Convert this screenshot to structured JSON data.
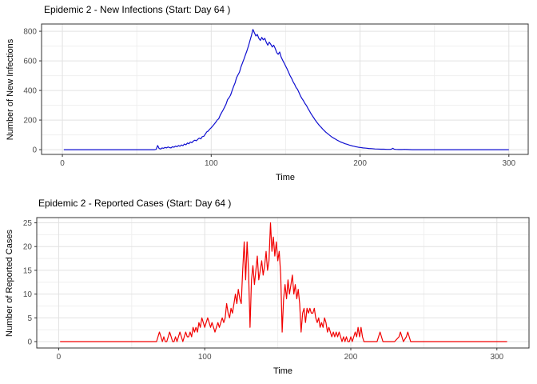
{
  "chart_data": [
    {
      "type": "line",
      "title": "Epidemic 2 - New Infections (Start: Day 64 )",
      "xlabel": "Time",
      "ylabel": "Number of New Infections",
      "line_color": "#0F0FD0",
      "start_day_shown_in_title": 64,
      "x_ticks": [
        0,
        100,
        200,
        300
      ],
      "x_minor_ticks": [
        50,
        150,
        250
      ],
      "y_ticks": [
        0,
        200,
        400,
        600,
        800
      ],
      "y_minor_ticks": [
        100,
        300,
        500,
        700
      ],
      "xlim": [
        -14,
        313
      ],
      "ylim": [
        -32,
        849
      ],
      "grid": true,
      "legend": "none",
      "points": [
        [
          1,
          0
        ],
        [
          10,
          0
        ],
        [
          20,
          0
        ],
        [
          30,
          0
        ],
        [
          40,
          0
        ],
        [
          50,
          0
        ],
        [
          58,
          0
        ],
        [
          62,
          0
        ],
        [
          63,
          2
        ],
        [
          64,
          28
        ],
        [
          65,
          8
        ],
        [
          66,
          4
        ],
        [
          67,
          12
        ],
        [
          68,
          9
        ],
        [
          69,
          15
        ],
        [
          70,
          12
        ],
        [
          71,
          18
        ],
        [
          72,
          14
        ],
        [
          73,
          12
        ],
        [
          74,
          20
        ],
        [
          75,
          16
        ],
        [
          76,
          24
        ],
        [
          77,
          20
        ],
        [
          78,
          28
        ],
        [
          79,
          23
        ],
        [
          80,
          32
        ],
        [
          81,
          27
        ],
        [
          82,
          38
        ],
        [
          83,
          33
        ],
        [
          84,
          45
        ],
        [
          85,
          40
        ],
        [
          86,
          52
        ],
        [
          87,
          47
        ],
        [
          88,
          58
        ],
        [
          89,
          64
        ],
        [
          90,
          60
        ],
        [
          91,
          70
        ],
        [
          92,
          78
        ],
        [
          93,
          73
        ],
        [
          94,
          88
        ],
        [
          95,
          90
        ],
        [
          96,
          105
        ],
        [
          97,
          120
        ],
        [
          98,
          126
        ],
        [
          99,
          138
        ],
        [
          100,
          148
        ],
        [
          101,
          160
        ],
        [
          102,
          172
        ],
        [
          103,
          185
        ],
        [
          104,
          200
        ],
        [
          105,
          208
        ],
        [
          106,
          232
        ],
        [
          107,
          250
        ],
        [
          108,
          268
        ],
        [
          109,
          288
        ],
        [
          110,
          308
        ],
        [
          111,
          338
        ],
        [
          112,
          352
        ],
        [
          113,
          368
        ],
        [
          114,
          398
        ],
        [
          115,
          425
        ],
        [
          116,
          450
        ],
        [
          117,
          486
        ],
        [
          118,
          505
        ],
        [
          119,
          524
        ],
        [
          120,
          560
        ],
        [
          121,
          585
        ],
        [
          122,
          612
        ],
        [
          123,
          640
        ],
        [
          124,
          668
        ],
        [
          125,
          700
        ],
        [
          126,
          735
        ],
        [
          127,
          770
        ],
        [
          128,
          812
        ],
        [
          129,
          790
        ],
        [
          130,
          768
        ],
        [
          131,
          778
        ],
        [
          132,
          752
        ],
        [
          133,
          738
        ],
        [
          134,
          758
        ],
        [
          135,
          742
        ],
        [
          136,
          752
        ],
        [
          137,
          726
        ],
        [
          138,
          706
        ],
        [
          139,
          726
        ],
        [
          140,
          712
        ],
        [
          141,
          694
        ],
        [
          142,
          706
        ],
        [
          143,
          684
        ],
        [
          144,
          656
        ],
        [
          145,
          644
        ],
        [
          146,
          660
        ],
        [
          147,
          626
        ],
        [
          148,
          604
        ],
        [
          149,
          585
        ],
        [
          150,
          565
        ],
        [
          151,
          545
        ],
        [
          152,
          522
        ],
        [
          153,
          500
        ],
        [
          154,
          482
        ],
        [
          155,
          460
        ],
        [
          156,
          442
        ],
        [
          157,
          420
        ],
        [
          158,
          408
        ],
        [
          159,
          385
        ],
        [
          160,
          362
        ],
        [
          161,
          345
        ],
        [
          162,
          330
        ],
        [
          163,
          312
        ],
        [
          164,
          298
        ],
        [
          165,
          278
        ],
        [
          166,
          262
        ],
        [
          167,
          244
        ],
        [
          168,
          228
        ],
        [
          169,
          214
        ],
        [
          170,
          198
        ],
        [
          171,
          185
        ],
        [
          172,
          172
        ],
        [
          173,
          160
        ],
        [
          174,
          150
        ],
        [
          175,
          138
        ],
        [
          176,
          128
        ],
        [
          177,
          118
        ],
        [
          178,
          110
        ],
        [
          179,
          102
        ],
        [
          180,
          94
        ],
        [
          181,
          86
        ],
        [
          182,
          80
        ],
        [
          183,
          74
        ],
        [
          184,
          68
        ],
        [
          185,
          62
        ],
        [
          186,
          57
        ],
        [
          187,
          52
        ],
        [
          188,
          48
        ],
        [
          189,
          44
        ],
        [
          190,
          40
        ],
        [
          191,
          37
        ],
        [
          192,
          34
        ],
        [
          193,
          30
        ],
        [
          194,
          28
        ],
        [
          195,
          25
        ],
        [
          196,
          23
        ],
        [
          197,
          20
        ],
        [
          198,
          18
        ],
        [
          199,
          16
        ],
        [
          200,
          15
        ],
        [
          202,
          12
        ],
        [
          204,
          10
        ],
        [
          206,
          8
        ],
        [
          208,
          7
        ],
        [
          210,
          5
        ],
        [
          212,
          4
        ],
        [
          214,
          3
        ],
        [
          216,
          3
        ],
        [
          218,
          2
        ],
        [
          220,
          2
        ],
        [
          221,
          3
        ],
        [
          222,
          9
        ],
        [
          223,
          3
        ],
        [
          224,
          2
        ],
        [
          226,
          1
        ],
        [
          228,
          1
        ],
        [
          230,
          2
        ],
        [
          232,
          1
        ],
        [
          235,
          0
        ],
        [
          240,
          0
        ],
        [
          250,
          0
        ],
        [
          260,
          0
        ],
        [
          270,
          0
        ],
        [
          280,
          0
        ],
        [
          290,
          0
        ],
        [
          300,
          0
        ]
      ]
    },
    {
      "type": "line",
      "title": "Epidemic 2 - Reported Cases (Start: Day 64 )",
      "xlabel": "Time",
      "ylabel": "Number of Reported Cases",
      "line_color": "#F20000",
      "start_day_shown_in_title": 64,
      "x_ticks": [
        0,
        100,
        200,
        300
      ],
      "x_minor_ticks": [
        50,
        150,
        250
      ],
      "y_ticks": [
        0,
        5,
        10,
        15,
        20,
        25
      ],
      "y_minor_ticks": [
        2.5,
        7.5,
        12.5,
        17.5,
        22.5
      ],
      "xlim": [
        -15,
        322
      ],
      "ylim": [
        -1.35,
        26.1
      ],
      "grid": true,
      "legend": "none",
      "points": [
        [
          1,
          0
        ],
        [
          10,
          0
        ],
        [
          20,
          0
        ],
        [
          30,
          0
        ],
        [
          40,
          0
        ],
        [
          50,
          0
        ],
        [
          60,
          0
        ],
        [
          65,
          0
        ],
        [
          67,
          0
        ],
        [
          68,
          1
        ],
        [
          69,
          2
        ],
        [
          70,
          1
        ],
        [
          71,
          0
        ],
        [
          72,
          1
        ],
        [
          73,
          0
        ],
        [
          74,
          0
        ],
        [
          75,
          1
        ],
        [
          76,
          2
        ],
        [
          77,
          1
        ],
        [
          78,
          0
        ],
        [
          79,
          0
        ],
        [
          80,
          1
        ],
        [
          81,
          0
        ],
        [
          82,
          1
        ],
        [
          83,
          2
        ],
        [
          84,
          1
        ],
        [
          85,
          0
        ],
        [
          86,
          1
        ],
        [
          87,
          2
        ],
        [
          88,
          1
        ],
        [
          89,
          1
        ],
        [
          90,
          2
        ],
        [
          91,
          1
        ],
        [
          92,
          3
        ],
        [
          93,
          2
        ],
        [
          94,
          3
        ],
        [
          95,
          2
        ],
        [
          96,
          4
        ],
        [
          97,
          3
        ],
        [
          98,
          5
        ],
        [
          99,
          4
        ],
        [
          100,
          3
        ],
        [
          101,
          4
        ],
        [
          102,
          5
        ],
        [
          103,
          4
        ],
        [
          104,
          3
        ],
        [
          105,
          4
        ],
        [
          106,
          3
        ],
        [
          107,
          2
        ],
        [
          108,
          3
        ],
        [
          109,
          4
        ],
        [
          110,
          3
        ],
        [
          111,
          4
        ],
        [
          112,
          5
        ],
        [
          113,
          4
        ],
        [
          114,
          5
        ],
        [
          115,
          8
        ],
        [
          116,
          6
        ],
        [
          117,
          5
        ],
        [
          118,
          7
        ],
        [
          119,
          6
        ],
        [
          120,
          8
        ],
        [
          121,
          10
        ],
        [
          122,
          8
        ],
        [
          123,
          11
        ],
        [
          124,
          9
        ],
        [
          125,
          8
        ],
        [
          126,
          15
        ],
        [
          127,
          21
        ],
        [
          128,
          13
        ],
        [
          129,
          21
        ],
        [
          130,
          15
        ],
        [
          131,
          3
        ],
        [
          132,
          13
        ],
        [
          133,
          16
        ],
        [
          134,
          12
        ],
        [
          135,
          15
        ],
        [
          136,
          18
        ],
        [
          137,
          13
        ],
        [
          138,
          15
        ],
        [
          139,
          17
        ],
        [
          140,
          14
        ],
        [
          141,
          16
        ],
        [
          142,
          19
        ],
        [
          143,
          15
        ],
        [
          144,
          17
        ],
        [
          145,
          25
        ],
        [
          146,
          19
        ],
        [
          147,
          22
        ],
        [
          148,
          18
        ],
        [
          149,
          21
        ],
        [
          150,
          17
        ],
        [
          151,
          19
        ],
        [
          152,
          14
        ],
        [
          153,
          2
        ],
        [
          154,
          9
        ],
        [
          155,
          12
        ],
        [
          156,
          9
        ],
        [
          157,
          13
        ],
        [
          158,
          10
        ],
        [
          159,
          12
        ],
        [
          160,
          14
        ],
        [
          161,
          10
        ],
        [
          162,
          12
        ],
        [
          163,
          9
        ],
        [
          164,
          11
        ],
        [
          165,
          8
        ],
        [
          166,
          2
        ],
        [
          167,
          6
        ],
        [
          168,
          7
        ],
        [
          169,
          4
        ],
        [
          170,
          7
        ],
        [
          171,
          6
        ],
        [
          172,
          7
        ],
        [
          173,
          6
        ],
        [
          174,
          6
        ],
        [
          175,
          7
        ],
        [
          176,
          5
        ],
        [
          177,
          4
        ],
        [
          178,
          5
        ],
        [
          179,
          3
        ],
        [
          180,
          4
        ],
        [
          181,
          3
        ],
        [
          182,
          5
        ],
        [
          183,
          4
        ],
        [
          184,
          2
        ],
        [
          185,
          3
        ],
        [
          186,
          2
        ],
        [
          187,
          1
        ],
        [
          188,
          2
        ],
        [
          189,
          1
        ],
        [
          190,
          2
        ],
        [
          191,
          1
        ],
        [
          192,
          2
        ],
        [
          193,
          1
        ],
        [
          194,
          0
        ],
        [
          195,
          1
        ],
        [
          196,
          0
        ],
        [
          197,
          1
        ],
        [
          198,
          0
        ],
        [
          199,
          0
        ],
        [
          200,
          1
        ],
        [
          201,
          0
        ],
        [
          202,
          1
        ],
        [
          203,
          2
        ],
        [
          204,
          1
        ],
        [
          205,
          3
        ],
        [
          206,
          1
        ],
        [
          207,
          3
        ],
        [
          208,
          1
        ],
        [
          209,
          0
        ],
        [
          210,
          0
        ],
        [
          212,
          0
        ],
        [
          215,
          0
        ],
        [
          218,
          0
        ],
        [
          219,
          1
        ],
        [
          220,
          2
        ],
        [
          221,
          1
        ],
        [
          222,
          0
        ],
        [
          225,
          0
        ],
        [
          228,
          0
        ],
        [
          230,
          0
        ],
        [
          233,
          1
        ],
        [
          234,
          2
        ],
        [
          235,
          1
        ],
        [
          236,
          0
        ],
        [
          238,
          1
        ],
        [
          239,
          2
        ],
        [
          240,
          1
        ],
        [
          241,
          0
        ],
        [
          245,
          0
        ],
        [
          250,
          0
        ],
        [
          260,
          0
        ],
        [
          270,
          0
        ],
        [
          280,
          0
        ],
        [
          290,
          0
        ],
        [
          300,
          0
        ],
        [
          307,
          0
        ]
      ]
    }
  ],
  "style": {
    "panel_background": "#FFFFFF",
    "panel_border_color": "#333333",
    "grid_major_color": "#E2E2E2",
    "grid_minor_color": "#EFEFEF",
    "tick_mark_color": "#333333",
    "tick_label_color": "#4D4D4D"
  }
}
